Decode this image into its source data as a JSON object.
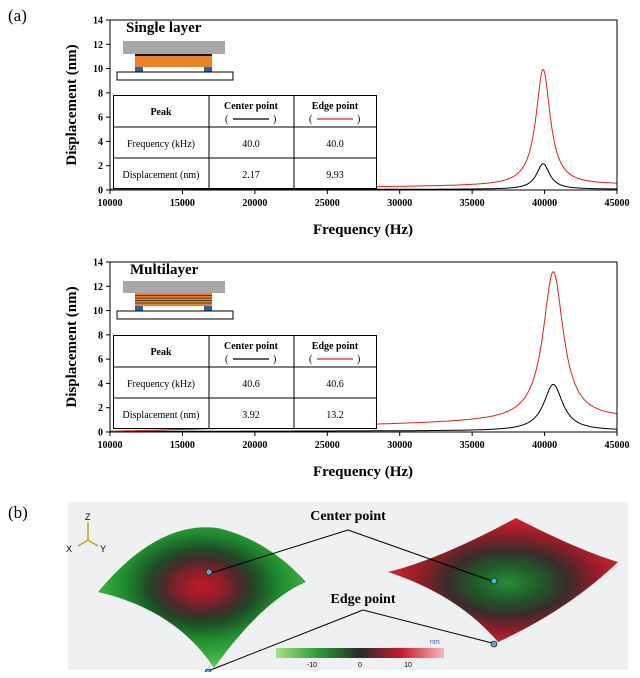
{
  "labels": {
    "panel_a": "(a)",
    "panel_b": "(b)"
  },
  "chart_data": [
    {
      "type": "line",
      "inset_title": "Single layer",
      "xlabel": "Frequency (Hz)",
      "ylabel": "Displacement (nm)",
      "xlim": [
        10000,
        45000
      ],
      "ylim": [
        0,
        14
      ],
      "xticks": [
        "10000",
        "15000",
        "20000",
        "25000",
        "30000",
        "35000",
        "40000",
        "45000"
      ],
      "yticks": [
        "0",
        "2",
        "4",
        "6",
        "8",
        "10",
        "12",
        "14"
      ],
      "series": [
        {
          "color": "#000000",
          "peak_x": 39900,
          "peak_y": 2.17,
          "base": 0.05,
          "slope": 0.01,
          "hw": 550
        },
        {
          "color": "#e02020",
          "peak_x": 39900,
          "peak_y": 9.93,
          "base": 0.05,
          "slope": 0.33,
          "hw": 600
        }
      ],
      "table": {
        "headers": [
          "Peak",
          "Center point",
          "Edge point"
        ],
        "legend_marks": [
          "( )",
          "( )"
        ],
        "rows": [
          [
            "Frequency (kHz)",
            "40.0",
            "40.0"
          ],
          [
            "Displacement (nm)",
            "2.17",
            "9.93"
          ]
        ]
      }
    },
    {
      "type": "line",
      "inset_title": "Multilayer",
      "xlabel": "Frequency (Hz)",
      "ylabel": "Displacement (nm)",
      "xlim": [
        10000,
        45000
      ],
      "ylim": [
        0,
        14
      ],
      "xticks": [
        "10000",
        "15000",
        "20000",
        "25000",
        "30000",
        "35000",
        "40000",
        "45000"
      ],
      "yticks": [
        "0",
        "2",
        "4",
        "6",
        "8",
        "10",
        "12",
        "14"
      ],
      "series": [
        {
          "color": "#000000",
          "peak_x": 40600,
          "peak_y": 3.92,
          "base": 0.05,
          "slope": 0.05,
          "hw": 800
        },
        {
          "color": "#e02020",
          "peak_x": 40600,
          "peak_y": 13.2,
          "base": 0.05,
          "slope": 0.9,
          "hw": 850
        }
      ],
      "table": {
        "headers": [
          "Peak",
          "Center point",
          "Edge point"
        ],
        "legend_marks": [
          "( )",
          "( )"
        ],
        "rows": [
          [
            "Frequency (kHz)",
            "40.6",
            "40.6"
          ],
          [
            "Displacement (nm)",
            "3.92",
            "13.2"
          ]
        ]
      }
    }
  ],
  "panel_b": {
    "center_label": "Center point",
    "edge_label": "Edge point",
    "axes": {
      "z": "Z",
      "x": "X",
      "y": "Y"
    },
    "colorbar": {
      "unit": "nm",
      "ticks": [
        "-10",
        "0",
        "10"
      ]
    }
  }
}
